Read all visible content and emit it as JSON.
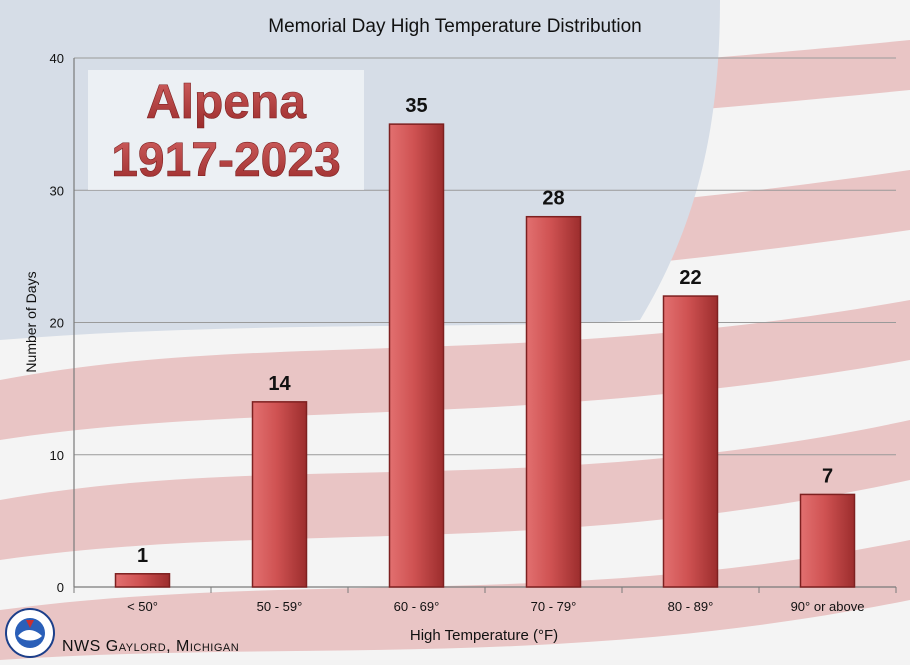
{
  "chart_data": {
    "type": "bar",
    "title": "Memorial Day High Temperature Distribution",
    "xlabel": "High Temperature (°F)",
    "ylabel": "Number of Days",
    "ylim": [
      0,
      40
    ],
    "yticks": [
      0,
      10,
      20,
      30,
      40
    ],
    "grid": true,
    "categories": [
      "< 50°",
      "50 - 59°",
      "60 - 69°",
      "70 - 79°",
      "80 - 89°",
      "90° or above"
    ],
    "values": [
      1,
      14,
      35,
      28,
      22,
      7
    ],
    "data_labels": [
      "1",
      "14",
      "35",
      "28",
      "22",
      "7"
    ],
    "annotation": {
      "line1": "Alpena",
      "line2": "1917-2023"
    }
  },
  "footer": {
    "credit": "NWS Gaylord, Michigan",
    "logo_icon": "noaa-nws-logo-icon"
  },
  "colors": {
    "bar": "#c84a4a",
    "bar_dark": "#8e2020",
    "annotation_text": "#b83a3a",
    "flag_red": "#d99a9a",
    "flag_blue": "#9fb3cf",
    "axis": "#7a7a7a"
  }
}
